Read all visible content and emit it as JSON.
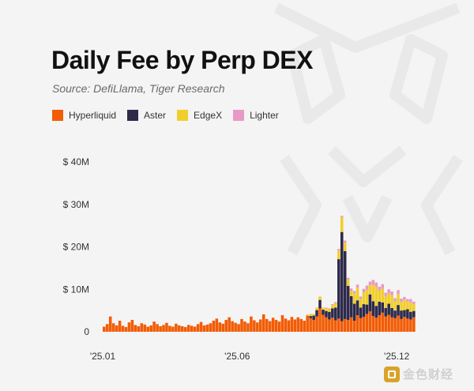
{
  "header": {
    "title": "Daily Fee by Perp DEX",
    "subtitle": "Source: DefiLlama, Tiger Research"
  },
  "legend": [
    {
      "label": "Hyperliquid",
      "color": "#f25c05"
    },
    {
      "label": "Aster",
      "color": "#2d2a4a"
    },
    {
      "label": "EdgeX",
      "color": "#f0cf2c"
    },
    {
      "label": "Lighter",
      "color": "#e89ac6"
    }
  ],
  "brand": {
    "text": "金色财经",
    "icon": "square-logo-icon"
  },
  "chart_data": {
    "type": "bar",
    "stacked": true,
    "x_tick_labels": [
      "'25.01",
      "'25.06",
      "'25.12"
    ],
    "y_tick_labels": [
      "0",
      "$ 10M",
      "$ 20M",
      "$ 30M",
      "$ 40M"
    ],
    "y_ticks": [
      0,
      10,
      20,
      30,
      40
    ],
    "ylim": [
      0,
      40
    ],
    "y_unit": "$M",
    "grid": false,
    "legend_position": "top-left",
    "series": [
      {
        "name": "Hyperliquid",
        "color": "#f25c05",
        "values": [
          1.2,
          1.8,
          3.6,
          2.0,
          1.5,
          2.6,
          1.4,
          1.1,
          2.2,
          2.8,
          1.6,
          1.3,
          2.0,
          1.7,
          1.2,
          1.5,
          2.4,
          1.8,
          1.3,
          1.6,
          2.1,
          1.4,
          1.2,
          1.9,
          1.5,
          1.3,
          1.1,
          1.6,
          1.4,
          1.2,
          1.8,
          2.3,
          1.5,
          1.7,
          2.0,
          2.6,
          3.1,
          2.2,
          1.9,
          2.8,
          3.4,
          2.5,
          2.1,
          1.8,
          3.0,
          2.4,
          2.0,
          3.6,
          2.7,
          2.2,
          2.9,
          4.1,
          3.0,
          2.5,
          3.3,
          2.8,
          2.4,
          3.9,
          3.1,
          2.7,
          3.5,
          2.9,
          3.4,
          3.0,
          2.6,
          3.8,
          3.2,
          2.8,
          3.6,
          5.5,
          4.0,
          3.4,
          2.9,
          3.3,
          2.7,
          3.1,
          2.5,
          3.0,
          2.8,
          3.4,
          2.6,
          3.9,
          3.2,
          3.5,
          4.2,
          4.8,
          3.7,
          3.3,
          3.9,
          4.5,
          3.6,
          4.0,
          3.4,
          3.2,
          3.8,
          3.0,
          3.5,
          3.1,
          2.9,
          3.4
        ]
      },
      {
        "name": "Aster",
        "color": "#2d2a4a",
        "values": [
          0,
          0,
          0,
          0,
          0,
          0,
          0,
          0,
          0,
          0,
          0,
          0,
          0,
          0,
          0,
          0,
          0,
          0,
          0,
          0,
          0,
          0,
          0,
          0,
          0,
          0,
          0,
          0,
          0,
          0,
          0,
          0,
          0,
          0,
          0,
          0,
          0,
          0,
          0,
          0,
          0,
          0,
          0,
          0,
          0,
          0,
          0,
          0,
          0,
          0,
          0,
          0,
          0,
          0,
          0,
          0,
          0,
          0,
          0,
          0,
          0,
          0,
          0,
          0,
          0,
          0,
          0.5,
          1.0,
          1.5,
          2.0,
          1.2,
          1.5,
          1.8,
          2.2,
          3.0,
          14.0,
          21.0,
          16.0,
          8.0,
          5.0,
          4.0,
          3.5,
          2.5,
          3.0,
          2.2,
          4.0,
          3.5,
          2.8,
          3.2,
          2.4,
          2.0,
          2.6,
          2.2,
          1.8,
          2.5,
          2.0,
          1.6,
          2.2,
          1.8,
          1.5
        ]
      },
      {
        "name": "EdgeX",
        "color": "#f0cf2c",
        "values": [
          0,
          0,
          0,
          0,
          0,
          0,
          0,
          0,
          0,
          0,
          0,
          0,
          0,
          0,
          0,
          0,
          0,
          0,
          0,
          0,
          0,
          0,
          0,
          0,
          0,
          0,
          0,
          0,
          0,
          0,
          0,
          0,
          0,
          0,
          0,
          0,
          0,
          0,
          0,
          0,
          0,
          0,
          0,
          0,
          0,
          0,
          0,
          0,
          0,
          0,
          0,
          0,
          0,
          0,
          0,
          0,
          0,
          0,
          0,
          0,
          0,
          0,
          0,
          0,
          0,
          0.2,
          0.5,
          0.4,
          0.6,
          0.8,
          0.5,
          0.7,
          0.6,
          0.8,
          1.0,
          2.0,
          3.5,
          2.0,
          1.5,
          1.2,
          2.5,
          3.0,
          2.0,
          2.8,
          3.5,
          2.2,
          3.8,
          4.5,
          2.6,
          3.2,
          2.8,
          2.4,
          3.0,
          2.2,
          2.6,
          2.0,
          2.4,
          1.8,
          2.2,
          1.6
        ]
      },
      {
        "name": "Lighter",
        "color": "#e89ac6",
        "values": [
          0,
          0,
          0,
          0,
          0,
          0,
          0,
          0,
          0,
          0,
          0,
          0,
          0,
          0,
          0,
          0,
          0,
          0,
          0,
          0,
          0,
          0,
          0,
          0,
          0,
          0,
          0,
          0,
          0,
          0,
          0,
          0,
          0,
          0,
          0,
          0,
          0,
          0,
          0,
          0,
          0,
          0,
          0,
          0,
          0,
          0,
          0,
          0,
          0,
          0,
          0,
          0,
          0,
          0,
          0,
          0,
          0,
          0,
          0,
          0,
          0,
          0,
          0,
          0,
          0,
          0,
          0,
          0,
          0,
          0,
          0,
          0.1,
          0.2,
          0.2,
          0.3,
          0.4,
          0.3,
          0.5,
          0.4,
          0.6,
          0.5,
          0.7,
          0.6,
          0.8,
          1.0,
          0.8,
          1.2,
          1.0,
          0.9,
          1.1,
          0.8,
          1.0,
          0.9,
          0.7,
          0.9,
          0.8,
          0.7,
          0.6,
          0.8,
          0.6
        ]
      }
    ]
  }
}
